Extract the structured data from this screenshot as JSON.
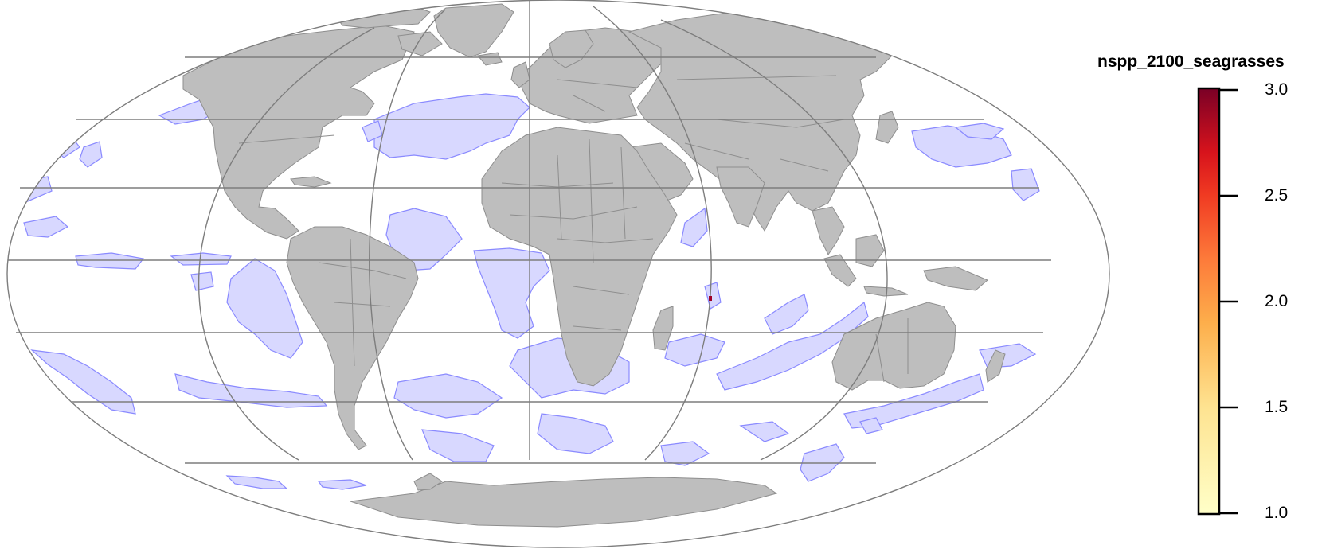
{
  "legend": {
    "title": "nspp_2100_seagrasses",
    "ticks": [
      "3.0",
      "2.5",
      "2.0",
      "1.5",
      "1.0"
    ],
    "colors": [
      "#ffffc8",
      "#fee391",
      "#fdbf5a",
      "#fd8d3c",
      "#fc4e2a",
      "#e31a1c",
      "#bd0026",
      "#800026"
    ]
  },
  "colors": {
    "land": "#bebebe",
    "land_border": "#8e8e8e",
    "ocean_patch_fill": "#d8d8ff",
    "ocean_patch_stroke": "#8a8aff",
    "graticule": "#7d7d7d"
  },
  "projection": "mollweide"
}
